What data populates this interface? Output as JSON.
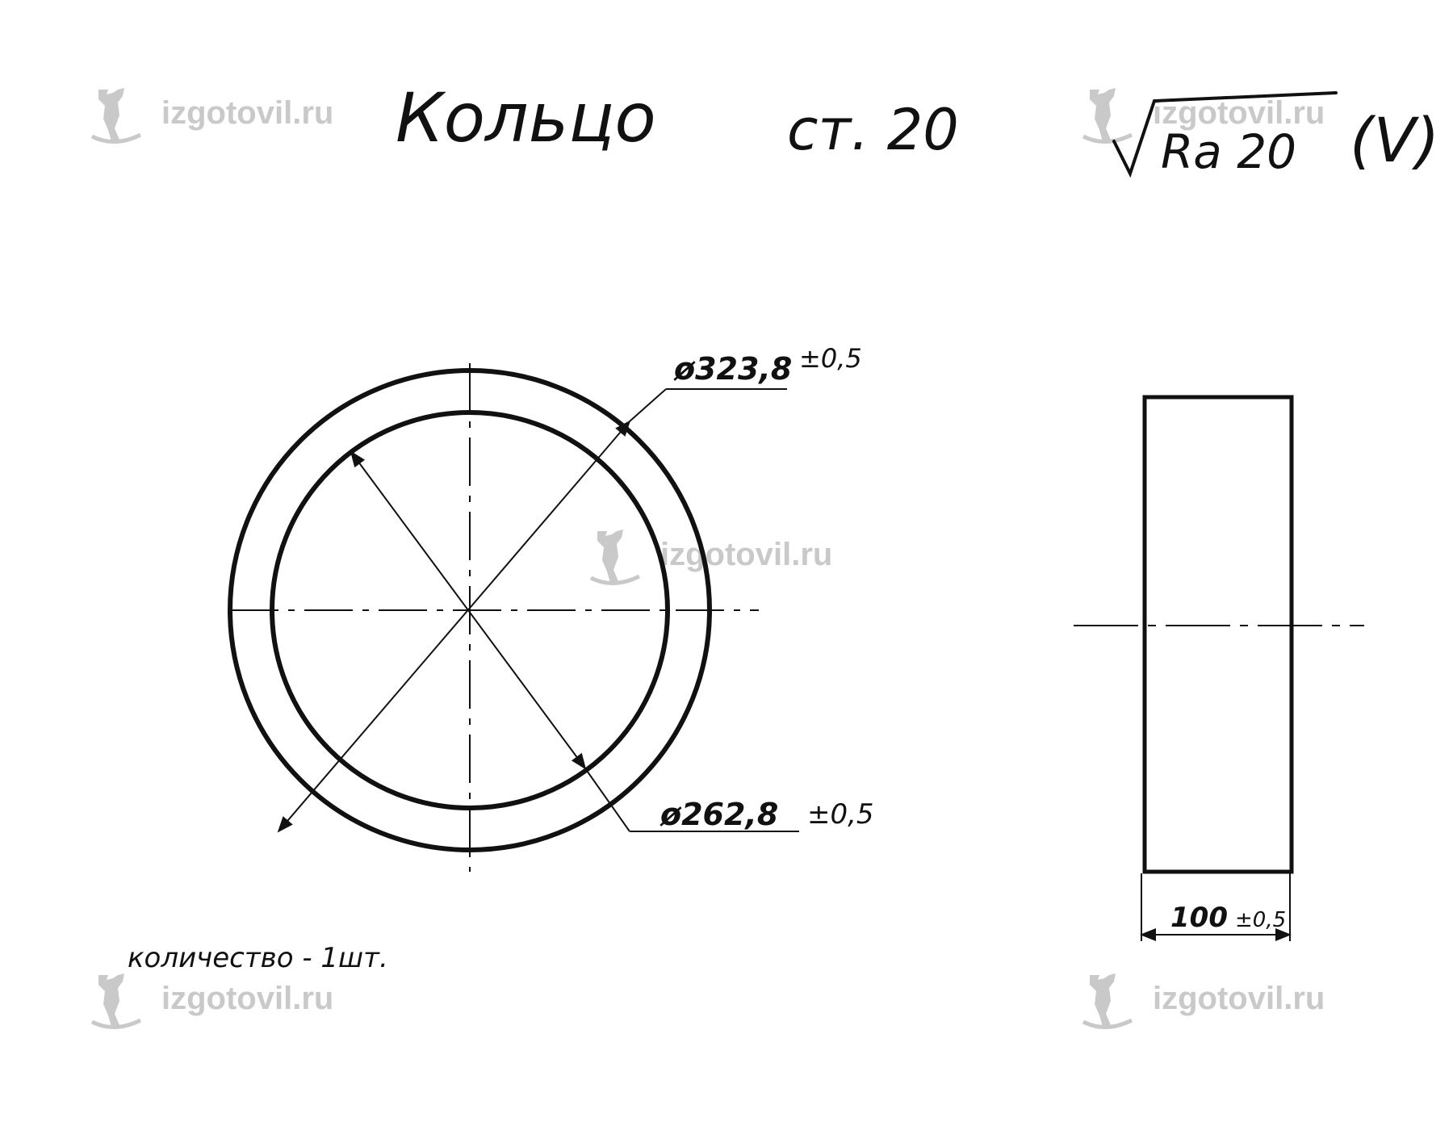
{
  "title": {
    "part_name": "Кольцо",
    "material": "ст. 20",
    "roughness": "Ra 20",
    "roughness_note": "(V)"
  },
  "dimensions": {
    "outer_diameter": "ø323,8",
    "outer_tolerance": "±0,5",
    "inner_diameter": "ø262,8",
    "inner_tolerance": "±0,5",
    "width": "100",
    "width_tolerance": "±0,5"
  },
  "quantity_note": "количество - 1шт.",
  "watermark": {
    "text": "izgotovil.ru",
    "color": "#c9c9c9"
  },
  "colors": {
    "ink": "#111111",
    "paper": "#ffffff"
  }
}
